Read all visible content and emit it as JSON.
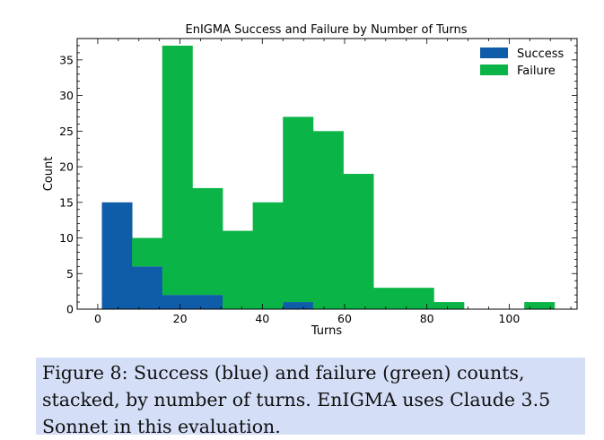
{
  "chart_data": {
    "type": "bar",
    "stacked": true,
    "title": "EnIGMA Success and Failure by Number of Turns",
    "xlabel": "Turns",
    "ylabel": "Count",
    "xlim": [
      -5,
      116.5
    ],
    "ylim": [
      0,
      38
    ],
    "xticks": [
      0,
      20,
      40,
      60,
      80,
      100
    ],
    "yticks": [
      0,
      5,
      10,
      15,
      20,
      25,
      30,
      35
    ],
    "bin_edges": [
      1.0,
      8.33,
      15.67,
      23.0,
      30.33,
      37.67,
      45.0,
      52.33,
      59.67,
      67.0,
      74.33,
      81.67,
      89.0,
      96.33,
      103.67,
      111.0
    ],
    "series": [
      {
        "name": "Success",
        "color": "#0f5ca8",
        "values": [
          15,
          6,
          2,
          2,
          0,
          0,
          1,
          0,
          0,
          0,
          0,
          0,
          0,
          0,
          0
        ]
      },
      {
        "name": "Failure",
        "color": "#0ab446",
        "values": [
          0,
          4,
          35,
          15,
          11,
          15,
          26,
          25,
          19,
          3,
          3,
          1,
          0,
          0,
          1
        ]
      }
    ],
    "legend_position": "top-right",
    "grid": false
  },
  "caption": "Figure 8: Success (blue) and failure (green) counts, stacked, by number of turns. EnIGMA uses Claude 3.5 Sonnet in this evaluation."
}
